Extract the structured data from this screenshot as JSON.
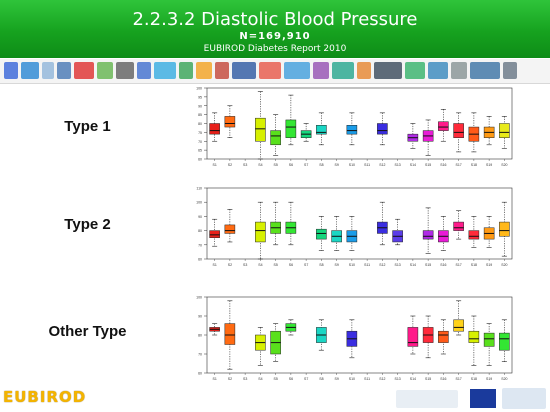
{
  "header": {
    "title": "2.2.3.2 Diastolic Blood Pressure",
    "n_label": "N=169,910",
    "subtitle": "EUBIROD Diabetes Report 2010"
  },
  "colors": {
    "header_green": "#16a21f",
    "footer_text": "#f4b400"
  },
  "rows": [
    {
      "label": "Type 1"
    },
    {
      "label": "Type 2"
    },
    {
      "label": "Other Type"
    }
  ],
  "footer": {
    "brand": "EUBIROD",
    "logos": [
      "dg-health-consumers-logo",
      "eu-flag-logo",
      "executive-agency-logo"
    ]
  },
  "chart_data": [
    {
      "type": "box",
      "title": "Type 1",
      "categories": [
        "S1",
        "S2",
        "S3",
        "S4",
        "S5",
        "S6",
        "S7",
        "S8",
        "S9",
        "S10",
        "S11",
        "S12",
        "S13",
        "S14",
        "S15",
        "S16",
        "S17",
        "S18",
        "S19",
        "S20"
      ],
      "ylim": [
        60,
        100
      ],
      "yticks": [
        60,
        65,
        70,
        75,
        80,
        85,
        90,
        95,
        100
      ],
      "boxes": [
        {
          "lo": 70,
          "q1": 74,
          "med": 76,
          "q3": 80,
          "hi": 86,
          "color": "#e8201a"
        },
        {
          "lo": 72,
          "q1": 78,
          "med": 80,
          "q3": 84,
          "hi": 90,
          "color": "#ff6a12"
        },
        null,
        {
          "lo": 60,
          "q1": 70,
          "med": 77,
          "q3": 83,
          "hi": 98,
          "color": "#d7f000"
        },
        {
          "lo": 62,
          "q1": 68,
          "med": 73,
          "q3": 76,
          "hi": 85,
          "color": "#59e01c"
        },
        {
          "lo": 68,
          "q1": 72,
          "med": 78,
          "q3": 82,
          "hi": 96,
          "color": "#33e633"
        },
        {
          "lo": 70,
          "q1": 72,
          "med": 74,
          "q3": 76,
          "hi": 80,
          "color": "#15d67d"
        },
        {
          "lo": 68,
          "q1": 74,
          "med": 75,
          "q3": 79,
          "hi": 86,
          "color": "#1ad6c4"
        },
        null,
        {
          "lo": 68,
          "q1": 74,
          "med": 76,
          "q3": 79,
          "hi": 86,
          "color": "#1a9ce8"
        },
        null,
        {
          "lo": 68,
          "q1": 74,
          "med": 76,
          "q3": 80,
          "hi": 86,
          "color": "#3a2de0"
        },
        null,
        {
          "lo": 66,
          "q1": 70,
          "med": 72,
          "q3": 74,
          "hi": 80,
          "color": "#b02be6"
        },
        {
          "lo": 62,
          "q1": 70,
          "med": 73,
          "q3": 76,
          "hi": 82,
          "color": "#e81bd6"
        },
        {
          "lo": 70,
          "q1": 76,
          "med": 78,
          "q3": 81,
          "hi": 88,
          "color": "#ff1a8a"
        },
        {
          "lo": 64,
          "q1": 72,
          "med": 75,
          "q3": 80,
          "hi": 86,
          "color": "#ff2a3a"
        },
        {
          "lo": 64,
          "q1": 70,
          "med": 74,
          "q3": 78,
          "hi": 86,
          "color": "#ff5a18"
        },
        {
          "lo": 68,
          "q1": 72,
          "med": 75,
          "q3": 78,
          "hi": 84,
          "color": "#ff9a14"
        },
        {
          "lo": 66,
          "q1": 72,
          "med": 75,
          "q3": 80,
          "hi": 84,
          "color": "#e8ea1a"
        }
      ]
    },
    {
      "type": "box",
      "title": "Type 2",
      "categories": [
        "S1",
        "S2",
        "S3",
        "S4",
        "S5",
        "S6",
        "S7",
        "S8",
        "S9",
        "S10",
        "S11",
        "S12",
        "S13",
        "S14",
        "S15",
        "S16",
        "S17",
        "S18",
        "S19",
        "S20"
      ],
      "ylim": [
        60,
        110
      ],
      "yticks": [
        60,
        70,
        80,
        90,
        100,
        110
      ],
      "boxes": [
        {
          "lo": 69,
          "q1": 75,
          "med": 77,
          "q3": 80,
          "hi": 88,
          "color": "#e8201a"
        },
        {
          "lo": 72,
          "q1": 78,
          "med": 80,
          "q3": 84,
          "hi": 95,
          "color": "#ff6a12"
        },
        null,
        {
          "lo": 60,
          "q1": 72,
          "med": 80,
          "q3": 86,
          "hi": 100,
          "color": "#d7f000"
        },
        {
          "lo": 70,
          "q1": 78,
          "med": 82,
          "q3": 86,
          "hi": 100,
          "color": "#59e01c"
        },
        {
          "lo": 70,
          "q1": 78,
          "med": 82,
          "q3": 86,
          "hi": 100,
          "color": "#33e633"
        },
        null,
        {
          "lo": 66,
          "q1": 74,
          "med": 78,
          "q3": 81,
          "hi": 90,
          "color": "#15d67d"
        },
        {
          "lo": 66,
          "q1": 72,
          "med": 76,
          "q3": 80,
          "hi": 90,
          "color": "#1ad6c4"
        },
        {
          "lo": 66,
          "q1": 72,
          "med": 76,
          "q3": 80,
          "hi": 90,
          "color": "#1a9ce8"
        },
        null,
        {
          "lo": 70,
          "q1": 78,
          "med": 82,
          "q3": 86,
          "hi": 100,
          "color": "#3a2de0"
        },
        {
          "lo": 70,
          "q1": 72,
          "med": 76,
          "q3": 80,
          "hi": 88,
          "color": "#5a3de8"
        },
        null,
        {
          "lo": 64,
          "q1": 74,
          "med": 76,
          "q3": 80,
          "hi": 96,
          "color": "#b02be6"
        },
        {
          "lo": 66,
          "q1": 72,
          "med": 76,
          "q3": 80,
          "hi": 90,
          "color": "#e81bd6"
        },
        {
          "lo": 74,
          "q1": 80,
          "med": 82,
          "q3": 86,
          "hi": 94,
          "color": "#ff1a8a"
        },
        {
          "lo": 68,
          "q1": 74,
          "med": 76,
          "q3": 80,
          "hi": 90,
          "color": "#ff2a3a"
        },
        {
          "lo": 68,
          "q1": 74,
          "med": 78,
          "q3": 82,
          "hi": 90,
          "color": "#ff9a14"
        },
        {
          "lo": 62,
          "q1": 76,
          "med": 80,
          "q3": 86,
          "hi": 100,
          "color": "#ffb81a"
        }
      ]
    },
    {
      "type": "box",
      "title": "Other Type",
      "categories": [
        "S1",
        "S2",
        "S3",
        "S4",
        "S5",
        "S6",
        "S7",
        "S8",
        "S9",
        "S10",
        "S11",
        "S12",
        "S13",
        "S14",
        "S15",
        "S16",
        "S17",
        "S18",
        "S19",
        "S20"
      ],
      "ylim": [
        60,
        100
      ],
      "yticks": [
        60,
        70,
        80,
        90,
        100
      ],
      "boxes": [
        {
          "lo": 80,
          "q1": 82,
          "med": 83,
          "q3": 84,
          "hi": 86,
          "color": "#e8201a"
        },
        {
          "lo": 62,
          "q1": 75,
          "med": 80,
          "q3": 86,
          "hi": 98,
          "color": "#ff6a12"
        },
        null,
        {
          "lo": 64,
          "q1": 72,
          "med": 76,
          "q3": 80,
          "hi": 84,
          "color": "#d7f000"
        },
        {
          "lo": 66,
          "q1": 70,
          "med": 76,
          "q3": 82,
          "hi": 86,
          "color": "#59e01c"
        },
        {
          "lo": 80,
          "q1": 82,
          "med": 84,
          "q3": 86,
          "hi": 88,
          "color": "#33e633"
        },
        null,
        {
          "lo": 72,
          "q1": 76,
          "med": 80,
          "q3": 84,
          "hi": 88,
          "color": "#1ad6c4"
        },
        null,
        {
          "lo": 68,
          "q1": 74,
          "med": 78,
          "q3": 82,
          "hi": 88,
          "color": "#3a2de0"
        },
        null,
        null,
        null,
        {
          "lo": 70,
          "q1": 74,
          "med": 76,
          "q3": 84,
          "hi": 90,
          "color": "#ff1a8a"
        },
        {
          "lo": 68,
          "q1": 76,
          "med": 80,
          "q3": 84,
          "hi": 90,
          "color": "#ff2a3a"
        },
        {
          "lo": 70,
          "q1": 76,
          "med": 80,
          "q3": 82,
          "hi": 88,
          "color": "#ff5a18"
        },
        {
          "lo": 80,
          "q1": 82,
          "med": 84,
          "q3": 88,
          "hi": 98,
          "color": "#ffd21a"
        },
        {
          "lo": 64,
          "q1": 76,
          "med": 78,
          "q3": 82,
          "hi": 90,
          "color": "#d7f000"
        },
        {
          "lo": 64,
          "q1": 74,
          "med": 78,
          "q3": 81,
          "hi": 86,
          "color": "#59e01c"
        },
        {
          "lo": 66,
          "q1": 72,
          "med": 78,
          "q3": 81,
          "hi": 88,
          "color": "#33e633"
        }
      ]
    }
  ]
}
